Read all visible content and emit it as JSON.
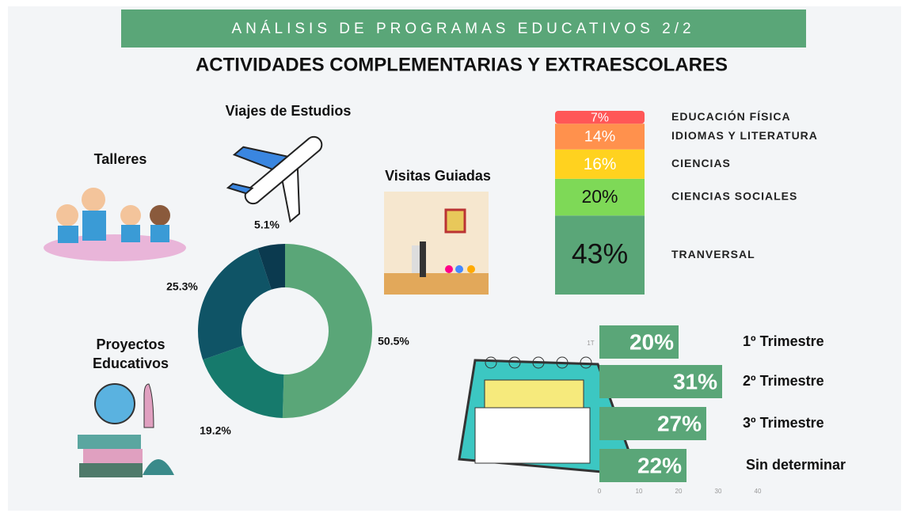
{
  "banner": "ANÁLISIS DE PROGRAMAS EDUCATIVOS 2/2",
  "title": "ACTIVIDADES COMPLEMENTARIAS Y EXTRAESCOLARES",
  "chart_data": [
    {
      "type": "pie",
      "hole": true,
      "categories": [
        "Visitas Guiadas",
        "Proyectos Educativos",
        "Talleres",
        "Viajes de Estudios"
      ],
      "values": [
        50.5,
        19.2,
        25.3,
        5.1
      ],
      "value_labels": [
        "50.5%",
        "19.2%",
        "25.3%",
        "5.1%"
      ],
      "colors": [
        "#5aa678",
        "#167a6c",
        "#0f5466",
        "#0b3a4f"
      ]
    },
    {
      "type": "bar",
      "stacked": true,
      "categories": [
        "EDUCACIÓN FÍSICA",
        "IDIOMAS Y LITERATURA",
        "CIENCIAS",
        "CIENCIAS SOCIALES",
        "TRANVERSAL"
      ],
      "values": [
        7,
        14,
        16,
        20,
        43
      ],
      "value_labels": [
        "7%",
        "14%",
        "16%",
        "20%",
        "43%"
      ],
      "colors": [
        "#ff5757",
        "#ff914d",
        "#ffd21f",
        "#7ed957",
        "#5aa678"
      ]
    },
    {
      "type": "bar",
      "horizontal": true,
      "color": "#5aa678",
      "categories": [
        "1º Trimestre",
        "2º Trimestre",
        "3º Trimestre",
        "Sin determinar"
      ],
      "values": [
        20,
        31,
        27,
        22
      ],
      "value_labels": [
        "20%",
        "31%",
        "27%",
        "22%"
      ],
      "annotation": "1T",
      "xlim": [
        0,
        40
      ],
      "xticks": [
        0,
        10,
        20,
        30,
        40
      ],
      "grid": false
    }
  ]
}
